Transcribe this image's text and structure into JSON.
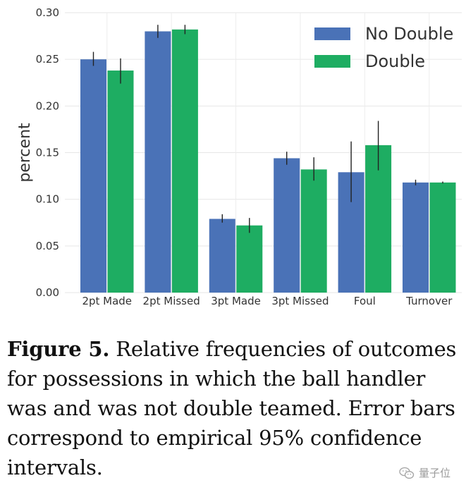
{
  "chart_data": {
    "type": "bar",
    "categories": [
      "2pt Made",
      "2pt Missed",
      "3pt Made",
      "3pt Missed",
      "Foul",
      "Turnover"
    ],
    "series": [
      {
        "name": "No Double",
        "color": "#4a72b7",
        "values": [
          0.25,
          0.28,
          0.079,
          0.144,
          0.129,
          0.118
        ],
        "error_low": [
          0.243,
          0.273,
          0.075,
          0.137,
          0.097,
          0.115
        ],
        "error_high": [
          0.258,
          0.287,
          0.084,
          0.151,
          0.162,
          0.121
        ]
      },
      {
        "name": "Double",
        "color": "#1ead62",
        "values": [
          0.238,
          0.282,
          0.072,
          0.132,
          0.158,
          0.118
        ],
        "error_low": [
          0.224,
          0.277,
          0.064,
          0.12,
          0.131,
          0.117
        ],
        "error_high": [
          0.251,
          0.287,
          0.08,
          0.145,
          0.184,
          0.119
        ]
      }
    ],
    "ylabel": "percent",
    "ylim": [
      0,
      0.3
    ],
    "yticks": [
      "0.00",
      "0.05",
      "0.10",
      "0.15",
      "0.20",
      "0.25",
      "0.30"
    ],
    "grid": true,
    "legend": "top-right",
    "error_bars": "95% confidence intervals"
  },
  "caption": {
    "label": "Figure 5.",
    "text": " Relative frequencies of outcomes for possessions in which the ball handler was and was not double teamed. Error bars correspond to empirical 95% confidence intervals."
  },
  "watermark": {
    "text": "量子位",
    "icon": "wechat-icon"
  }
}
